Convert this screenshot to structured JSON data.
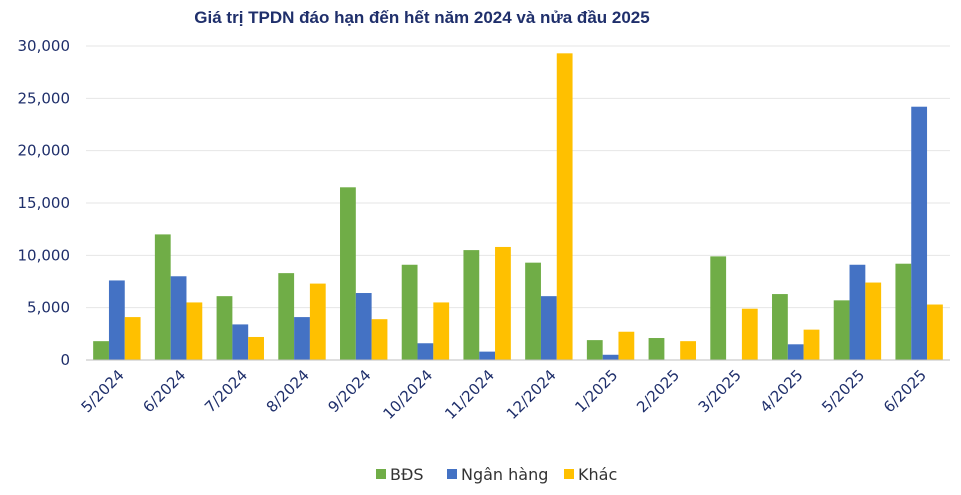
{
  "chart_data": {
    "type": "bar",
    "title": "Giá trị TPDN đáo hạn đến hết năm 2024 và nửa đầu 2025",
    "xlabel": "",
    "ylabel": "",
    "ylim": [
      0,
      30000
    ],
    "yticks": [
      0,
      5000,
      10000,
      15000,
      20000,
      25000,
      30000
    ],
    "ytick_labels": [
      "0",
      "5,000",
      "10,000",
      "15,000",
      "20,000",
      "25,000",
      "30,000"
    ],
    "grid": true,
    "legend_position": "bottom",
    "categories": [
      "5/2024",
      "6/2024",
      "7/2024",
      "8/2024",
      "9/2024",
      "10/2024",
      "11/2024",
      "12/2024",
      "1/2025",
      "2/2025",
      "3/2025",
      "4/2025",
      "5/2025",
      "6/2025"
    ],
    "series": [
      {
        "name": "BĐS",
        "color": "#70ad47",
        "values": [
          1800,
          12000,
          6100,
          8300,
          16500,
          9100,
          10500,
          9300,
          1900,
          2100,
          9900,
          6300,
          5700,
          9200
        ]
      },
      {
        "name": "Ngân hàng",
        "color": "#4472c4",
        "values": [
          7600,
          8000,
          3400,
          4100,
          6400,
          1600,
          800,
          6100,
          500,
          0,
          0,
          1500,
          9100,
          24200
        ]
      },
      {
        "name": "Khác",
        "color": "#ffc000",
        "values": [
          4100,
          5500,
          2200,
          7300,
          3900,
          5500,
          10800,
          29300,
          2700,
          1800,
          4900,
          2900,
          7400,
          5300
        ]
      }
    ]
  }
}
